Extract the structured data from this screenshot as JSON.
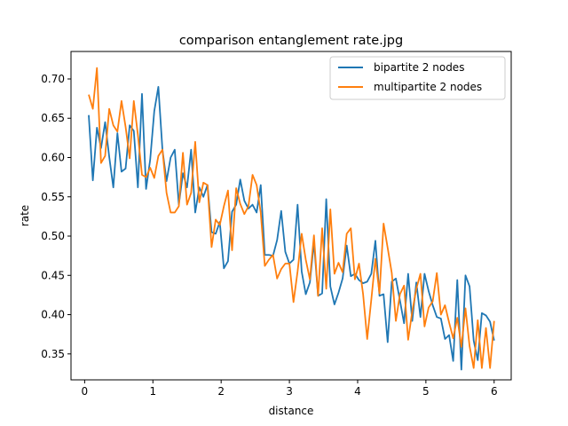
{
  "chart_data": {
    "type": "line",
    "title": "comparison entanglement rate.jpg",
    "xlabel": "distance",
    "ylabel": "rate",
    "xlim": [
      -0.2,
      6.25
    ],
    "ylim": [
      0.317,
      0.735
    ],
    "xticks": [
      0,
      1,
      2,
      3,
      4,
      5,
      6
    ],
    "yticks": [
      0.35,
      0.4,
      0.45,
      0.5,
      0.55,
      0.6,
      0.65,
      0.7
    ],
    "xtick_labels": [
      "0",
      "1",
      "2",
      "3",
      "4",
      "5",
      "6"
    ],
    "ytick_labels": [
      "0.35",
      "0.40",
      "0.45",
      "0.50",
      "0.55",
      "0.60",
      "0.65",
      "0.70"
    ],
    "grid": false,
    "legend_position": "top-right",
    "x": [
      0.06,
      0.12,
      0.18,
      0.24,
      0.3,
      0.36,
      0.42,
      0.48,
      0.54,
      0.6,
      0.66,
      0.72,
      0.78,
      0.84,
      0.9,
      0.96,
      1.02,
      1.08,
      1.14,
      1.2,
      1.26,
      1.32,
      1.38,
      1.44,
      1.5,
      1.56,
      1.62,
      1.68,
      1.74,
      1.8,
      1.86,
      1.92,
      1.98,
      2.04,
      2.1,
      2.16,
      2.22,
      2.28,
      2.34,
      2.4,
      2.46,
      2.52,
      2.58,
      2.64,
      2.7,
      2.76,
      2.82,
      2.88,
      2.94,
      3.0,
      3.06,
      3.12,
      3.18,
      3.24,
      3.3,
      3.36,
      3.42,
      3.48,
      3.54,
      3.6,
      3.66,
      3.72,
      3.78,
      3.84,
      3.9,
      3.96,
      4.02,
      4.08,
      4.14,
      4.2,
      4.26,
      4.32,
      4.38,
      4.44,
      4.5,
      4.56,
      4.62,
      4.68,
      4.74,
      4.8,
      4.86,
      4.92,
      4.98,
      5.04,
      5.1,
      5.16,
      5.22,
      5.28,
      5.34,
      5.4,
      5.46,
      5.52,
      5.58,
      5.64,
      5.7,
      5.76,
      5.82,
      5.88,
      5.94,
      6.0
    ],
    "series": [
      {
        "name": "bipartite 2 nodes",
        "color": "#1f77b4",
        "values": [
          0.654,
          0.571,
          0.638,
          0.612,
          0.645,
          0.601,
          0.562,
          0.631,
          0.582,
          0.586,
          0.641,
          0.634,
          0.562,
          0.681,
          0.56,
          0.597,
          0.659,
          0.69,
          0.61,
          0.57,
          0.6,
          0.61,
          0.54,
          0.58,
          0.562,
          0.61,
          0.53,
          0.562,
          0.55,
          0.565,
          0.505,
          0.503,
          0.518,
          0.459,
          0.468,
          0.531,
          0.54,
          0.572,
          0.545,
          0.535,
          0.54,
          0.53,
          0.565,
          0.476,
          0.476,
          0.475,
          0.495,
          0.532,
          0.48,
          0.465,
          0.47,
          0.54,
          0.455,
          0.426,
          0.441,
          0.492,
          0.424,
          0.427,
          0.547,
          0.436,
          0.413,
          0.428,
          0.446,
          0.488,
          0.449,
          0.452,
          0.444,
          0.44,
          0.442,
          0.452,
          0.494,
          0.424,
          0.426,
          0.365,
          0.442,
          0.446,
          0.418,
          0.389,
          0.452,
          0.392,
          0.441,
          0.397,
          0.452,
          0.43,
          0.412,
          0.397,
          0.395,
          0.369,
          0.374,
          0.341,
          0.444,
          0.33,
          0.45,
          0.436,
          0.367,
          0.342,
          0.402,
          0.399,
          0.391,
          0.367
        ]
      },
      {
        "name": "multipartite 2 nodes",
        "color": "#ff7f0e",
        "values": [
          0.68,
          0.662,
          0.714,
          0.593,
          0.602,
          0.662,
          0.641,
          0.633,
          0.672,
          0.639,
          0.599,
          0.672,
          0.629,
          0.578,
          0.575,
          0.587,
          0.574,
          0.602,
          0.61,
          0.555,
          0.53,
          0.53,
          0.538,
          0.606,
          0.54,
          0.555,
          0.62,
          0.543,
          0.568,
          0.565,
          0.486,
          0.521,
          0.514,
          0.538,
          0.558,
          0.482,
          0.561,
          0.541,
          0.528,
          0.538,
          0.578,
          0.565,
          0.53,
          0.462,
          0.47,
          0.476,
          0.446,
          0.458,
          0.465,
          0.465,
          0.416,
          0.455,
          0.503,
          0.47,
          0.445,
          0.501,
          0.424,
          0.51,
          0.433,
          0.534,
          0.452,
          0.466,
          0.454,
          0.503,
          0.51,
          0.445,
          0.465,
          0.426,
          0.369,
          0.419,
          0.471,
          0.427,
          0.516,
          0.485,
          0.453,
          0.392,
          0.426,
          0.437,
          0.368,
          0.404,
          0.433,
          0.452,
          0.385,
          0.409,
          0.417,
          0.453,
          0.4,
          0.412,
          0.39,
          0.37,
          0.396,
          0.359,
          0.408,
          0.36,
          0.332,
          0.393,
          0.332,
          0.383,
          0.332,
          0.392
        ]
      }
    ]
  }
}
